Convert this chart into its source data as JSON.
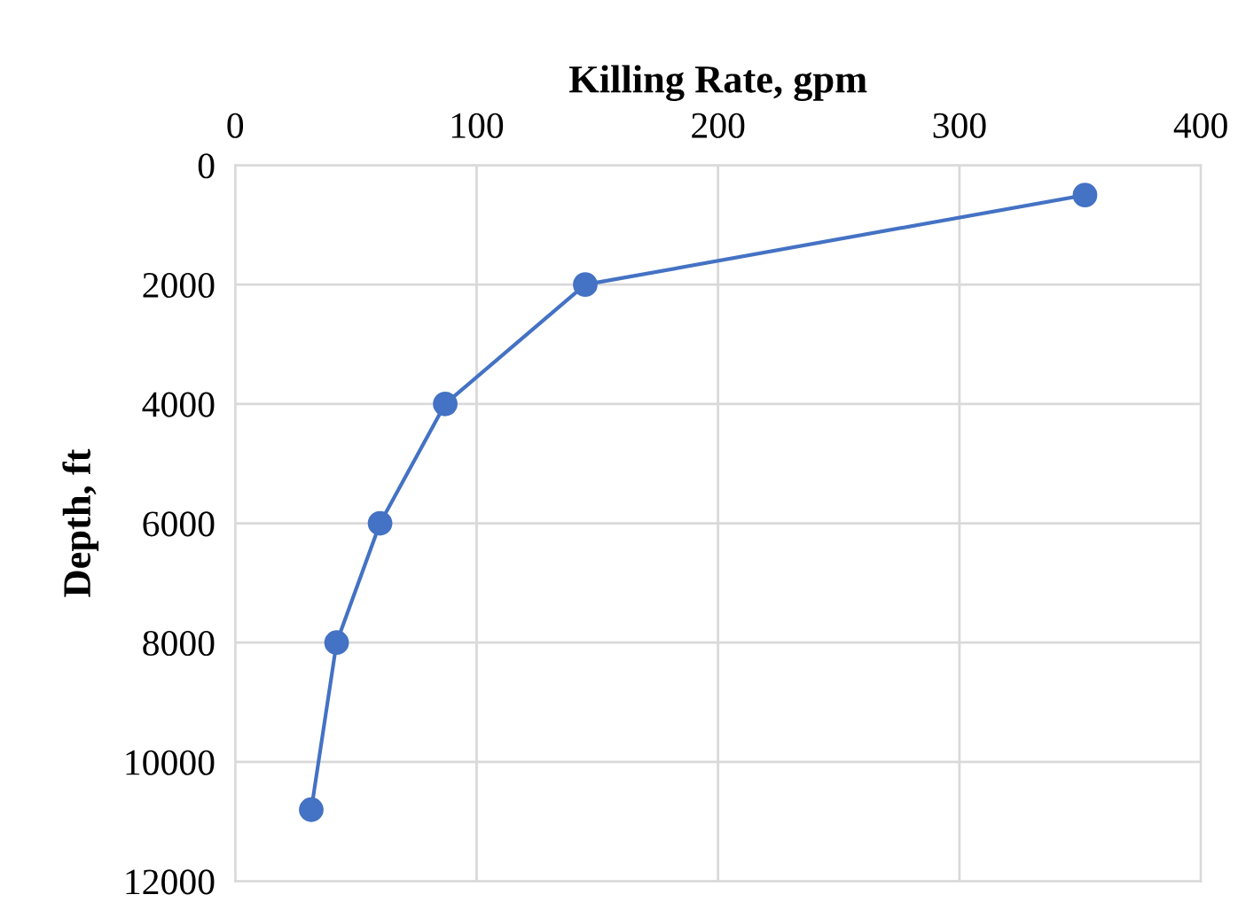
{
  "chart_data": {
    "type": "line",
    "xlabel": "Killing Rate, gpm",
    "ylabel": "Depth, ft",
    "x": [
      352,
      145,
      87,
      60,
      42,
      31.5
    ],
    "series": [
      {
        "color": "#4472c4",
        "values": [
          500,
          2000,
          4000,
          6000,
          8000,
          10800
        ]
      }
    ],
    "xlim": [
      0,
      400
    ],
    "xticks": [
      0,
      100,
      200,
      300,
      400
    ],
    "ylim": [
      12000,
      0
    ],
    "yticks": [
      0,
      2000,
      4000,
      6000,
      8000,
      10000,
      12000
    ],
    "grid": true,
    "marker": "circle",
    "line_style": "solid"
  }
}
